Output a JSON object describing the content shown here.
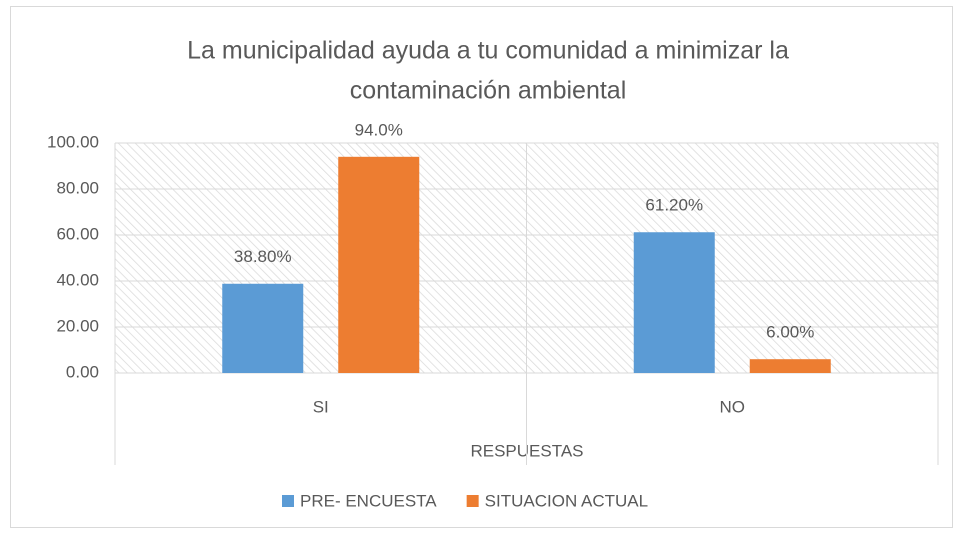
{
  "chart_data": {
    "type": "bar",
    "title": [
      "La municipalidad ayuda a tu comunidad a minimizar la",
      "contaminación ambiental"
    ],
    "x_label": "RESPUESTAS",
    "categories": [
      "SI",
      "NO"
    ],
    "series": [
      {
        "name": "PRE- ENCUESTA",
        "color": "#5b9bd5",
        "values": [
          38.8,
          61.2
        ],
        "value_labels": [
          "38.80%",
          "61.20%"
        ]
      },
      {
        "name": "SITUACION ACTUAL",
        "color": "#ed7d31",
        "values": [
          94.0,
          6.0
        ],
        "value_labels": [
          "94.0%",
          "6.00%"
        ]
      }
    ],
    "ylim": [
      0,
      100
    ],
    "yticks": [
      {
        "value": 0,
        "label": "0.00"
      },
      {
        "value": 20,
        "label": "20.00"
      },
      {
        "value": 40,
        "label": "40.00"
      },
      {
        "value": 60,
        "label": "60.00"
      },
      {
        "value": 80,
        "label": "80.00"
      },
      {
        "value": 100,
        "label": "100.00"
      }
    ],
    "grid": true,
    "legend": "bottom"
  }
}
